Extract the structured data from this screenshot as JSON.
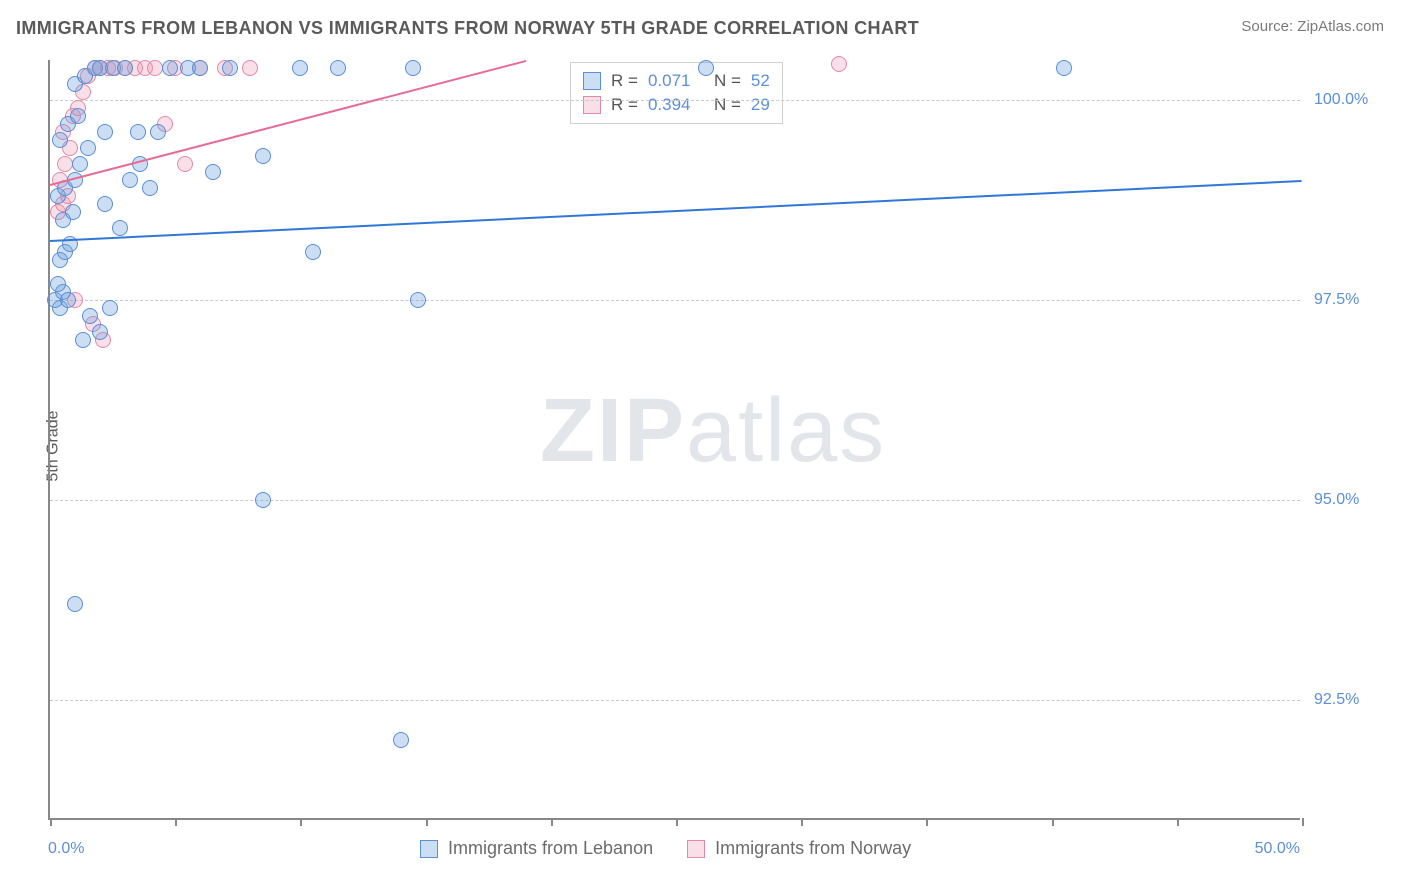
{
  "title": "IMMIGRANTS FROM LEBANON VS IMMIGRANTS FROM NORWAY 5TH GRADE CORRELATION CHART",
  "source_prefix": "Source: ",
  "source_name": "ZipAtlas.com",
  "ylabel": "5th Grade",
  "watermark_bold": "ZIP",
  "watermark_thin": "atlas",
  "colors": {
    "blue_stroke": "#5b8fd6",
    "blue_fill": "rgba(109,160,220,0.35)",
    "blue_line": "#2f78d7",
    "pink_stroke": "#e489a6",
    "pink_fill": "rgba(235,150,180,0.30)",
    "pink_line": "#e76b95",
    "axis_label": "#5b8fd6",
    "grid": "#c9c9c9",
    "text_title": "#5a5a5a",
    "text_muted": "#7a7a7a"
  },
  "plot": {
    "x_min": 0.0,
    "x_max": 50.0,
    "y_min": 91.0,
    "y_max": 100.5,
    "y_ticks": [
      92.5,
      95.0,
      97.5,
      100.0
    ],
    "y_tick_labels": [
      "92.5%",
      "95.0%",
      "97.5%",
      "100.0%"
    ],
    "x_ticks": [
      0,
      5,
      10,
      15,
      20,
      25,
      30,
      35,
      40,
      45,
      50
    ],
    "x_tick_labels_show": {
      "0": "0.0%",
      "50": "50.0%"
    }
  },
  "stat_box": {
    "rows": [
      {
        "swatch": "blue",
        "r_label": "R =",
        "r": "0.071",
        "n_label": "N =",
        "n": "52"
      },
      {
        "swatch": "pink",
        "r_label": "R =",
        "r": "0.394",
        "n_label": "N =",
        "n": "29"
      }
    ]
  },
  "legend": {
    "items": [
      {
        "swatch": "blue",
        "label": "Immigrants from Lebanon"
      },
      {
        "swatch": "pink",
        "label": "Immigrants from Norway"
      }
    ]
  },
  "trend_lines": {
    "blue": {
      "x1": 0.0,
      "y1": 98.25,
      "x2": 50.0,
      "y2": 99.0,
      "color_key": "blue_line",
      "width": 2.5
    },
    "pink": {
      "x1": 0.0,
      "y1": 98.95,
      "x2": 19.0,
      "y2": 100.5,
      "color_key": "pink_line",
      "width": 2.5
    }
  },
  "series": {
    "blue": {
      "marker_radius": 8,
      "stroke_key": "blue_stroke",
      "fill_key": "blue_fill",
      "points": [
        [
          0.2,
          97.5
        ],
        [
          0.4,
          97.4
        ],
        [
          0.5,
          97.6
        ],
        [
          0.3,
          97.7
        ],
        [
          0.7,
          97.5
        ],
        [
          0.4,
          98.0
        ],
        [
          0.6,
          98.1
        ],
        [
          0.8,
          98.2
        ],
        [
          0.5,
          98.5
        ],
        [
          0.9,
          98.6
        ],
        [
          0.3,
          98.8
        ],
        [
          0.6,
          98.9
        ],
        [
          1.0,
          99.0
        ],
        [
          1.2,
          99.2
        ],
        [
          1.5,
          99.4
        ],
        [
          0.4,
          99.5
        ],
        [
          0.7,
          99.7
        ],
        [
          1.1,
          99.8
        ],
        [
          1.0,
          100.2
        ],
        [
          1.4,
          100.3
        ],
        [
          1.8,
          100.4
        ],
        [
          2.0,
          100.4
        ],
        [
          2.5,
          100.4
        ],
        [
          3.0,
          100.4
        ],
        [
          3.5,
          99.6
        ],
        [
          2.2,
          98.7
        ],
        [
          2.8,
          98.4
        ],
        [
          3.2,
          99.0
        ],
        [
          3.6,
          99.2
        ],
        [
          4.0,
          98.9
        ],
        [
          4.3,
          99.6
        ],
        [
          4.8,
          100.4
        ],
        [
          5.5,
          100.4
        ],
        [
          6.0,
          100.4
        ],
        [
          6.5,
          99.1
        ],
        [
          7.2,
          100.4
        ],
        [
          8.5,
          99.3
        ],
        [
          10.0,
          100.4
        ],
        [
          10.5,
          98.1
        ],
        [
          11.5,
          100.4
        ],
        [
          14.5,
          100.4
        ],
        [
          14.7,
          97.5
        ],
        [
          8.5,
          95.0
        ],
        [
          14.0,
          92.0
        ],
        [
          2.0,
          97.1
        ],
        [
          2.4,
          97.4
        ],
        [
          1.6,
          97.3
        ],
        [
          1.3,
          97.0
        ],
        [
          1.0,
          93.7
        ],
        [
          2.2,
          99.6
        ],
        [
          40.5,
          100.4
        ],
        [
          26.2,
          100.4
        ]
      ]
    },
    "pink": {
      "marker_radius": 8,
      "stroke_key": "pink_stroke",
      "fill_key": "pink_fill",
      "points": [
        [
          0.3,
          98.6
        ],
        [
          0.5,
          98.7
        ],
        [
          0.7,
          98.8
        ],
        [
          0.4,
          99.0
        ],
        [
          0.6,
          99.2
        ],
        [
          0.8,
          99.4
        ],
        [
          0.5,
          99.6
        ],
        [
          0.9,
          99.8
        ],
        [
          1.1,
          99.9
        ],
        [
          1.3,
          100.1
        ],
        [
          1.5,
          100.3
        ],
        [
          1.8,
          100.4
        ],
        [
          2.0,
          100.4
        ],
        [
          2.3,
          100.4
        ],
        [
          2.6,
          100.4
        ],
        [
          3.0,
          100.4
        ],
        [
          3.4,
          100.4
        ],
        [
          3.8,
          100.4
        ],
        [
          4.2,
          100.4
        ],
        [
          4.6,
          99.7
        ],
        [
          5.0,
          100.4
        ],
        [
          5.4,
          99.2
        ],
        [
          6.0,
          100.4
        ],
        [
          7.0,
          100.4
        ],
        [
          8.0,
          100.4
        ],
        [
          1.0,
          97.5
        ],
        [
          1.7,
          97.2
        ],
        [
          2.1,
          97.0
        ],
        [
          31.5,
          100.45
        ]
      ]
    }
  }
}
